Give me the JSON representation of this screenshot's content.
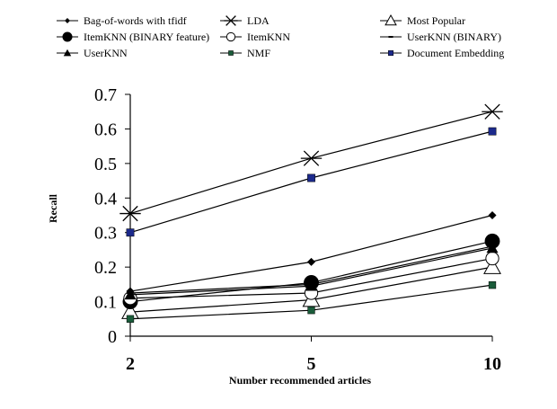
{
  "chart_data": {
    "type": "line",
    "title": "",
    "xlabel": "Number recommended articles",
    "ylabel": "Recall",
    "categories": [
      "2",
      "5",
      "10"
    ],
    "ylim": [
      0,
      0.7
    ],
    "yticks": [
      "0",
      "0.1",
      "0.2",
      "0.3",
      "0.4",
      "0.5",
      "0.6",
      "0.7"
    ],
    "grid": false,
    "legend_position": "top",
    "series": [
      {
        "name": "Bag-of-words with tfidf",
        "marker": "diamond",
        "values": [
          0.13,
          0.215,
          0.35
        ]
      },
      {
        "name": "LDA",
        "marker": "asterisk",
        "values": [
          0.355,
          0.515,
          0.65
        ]
      },
      {
        "name": "Most Popular",
        "marker": "triangle-open",
        "values": [
          0.07,
          0.105,
          0.2
        ]
      },
      {
        "name": "ItemKNN (BINARY feature)",
        "marker": "circle-filled",
        "values": [
          0.1,
          0.155,
          0.275
        ]
      },
      {
        "name": "ItemKNN",
        "marker": "circle-open",
        "values": [
          0.11,
          0.125,
          0.225
        ]
      },
      {
        "name": "UserKNN (BINARY)",
        "marker": "dash",
        "values": [
          0.125,
          0.15,
          0.26
        ]
      },
      {
        "name": "UserKNN",
        "marker": "triangle-filled",
        "values": [
          0.12,
          0.145,
          0.255
        ]
      },
      {
        "name": "NMF",
        "marker": "square-small",
        "values": [
          0.05,
          0.075,
          0.148
        ]
      },
      {
        "name": "Document Embedding",
        "marker": "square-filled",
        "values": [
          0.3,
          0.458,
          0.593
        ]
      }
    ]
  },
  "colors": {
    "line": "#000000",
    "nmf_marker": "#1a5c3a",
    "embedding_marker": "#1c2a8c"
  }
}
